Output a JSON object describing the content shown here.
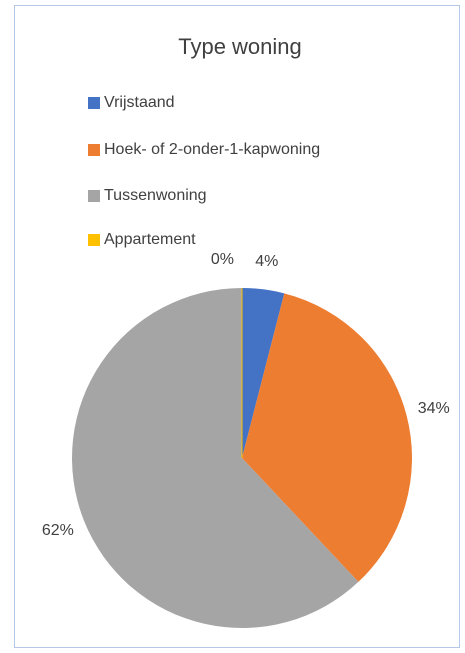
{
  "chart_data": {
    "type": "pie",
    "title": "Type woning",
    "categories": [
      "Vrijstaand",
      "Hoek- of 2-onder-1-kapwoning",
      "Tussenwoning",
      "Appartement"
    ],
    "values": [
      4,
      34,
      62,
      0
    ],
    "value_labels": [
      "4%",
      "34%",
      "62%",
      "0%"
    ],
    "colors": [
      "#4472c4",
      "#ed7d31",
      "#a5a5a5",
      "#ffc000"
    ],
    "legend": "top"
  }
}
